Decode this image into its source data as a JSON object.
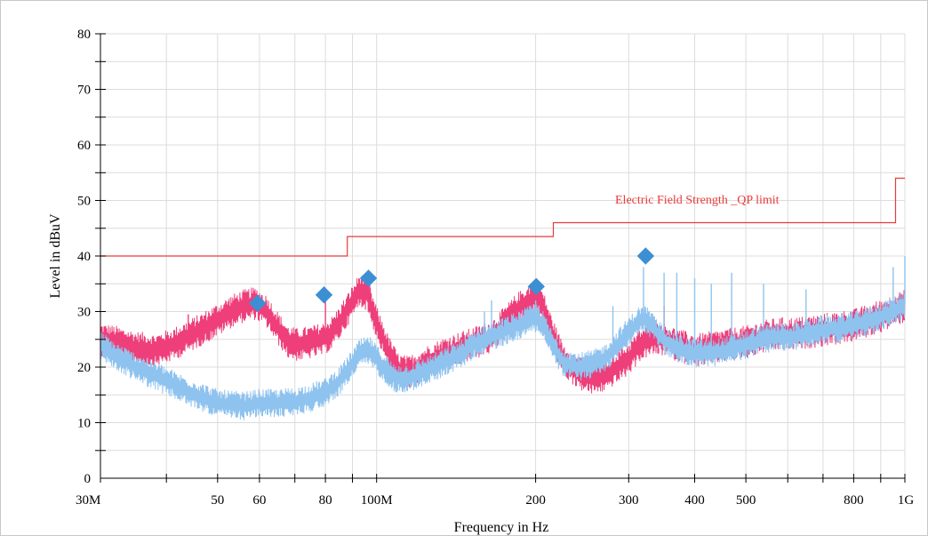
{
  "colors": {
    "peak": "#ee3f7a",
    "qp": "#8fc3ef",
    "limit": "#ea3a3a",
    "marker": "#3d8fd4",
    "grid": "#dcdcdc",
    "axis": "#000000"
  },
  "chart_data": {
    "type": "line",
    "xlabel": "Frequency in Hz",
    "ylabel": "Level in dBuV",
    "x_scale": "log",
    "xlim": [
      "30M",
      "1G"
    ],
    "ylim": [
      0,
      80
    ],
    "grid": true,
    "x_tick_labels": [
      {
        "freq_mhz": 30,
        "label": "30M"
      },
      {
        "freq_mhz": 50,
        "label": "50"
      },
      {
        "freq_mhz": 60,
        "label": "60"
      },
      {
        "freq_mhz": 80,
        "label": "80"
      },
      {
        "freq_mhz": 100,
        "label": "100M"
      },
      {
        "freq_mhz": 200,
        "label": "200"
      },
      {
        "freq_mhz": 300,
        "label": "300"
      },
      {
        "freq_mhz": 400,
        "label": "400"
      },
      {
        "freq_mhz": 500,
        "label": "500"
      },
      {
        "freq_mhz": 800,
        "label": "800"
      },
      {
        "freq_mhz": 1000,
        "label": "1G"
      }
    ],
    "x_grid_mhz": [
      30,
      40,
      50,
      60,
      70,
      80,
      90,
      100,
      200,
      300,
      400,
      500,
      600,
      700,
      800,
      900,
      1000
    ],
    "y_ticks": [
      0,
      10,
      20,
      30,
      40,
      50,
      60,
      70,
      80
    ],
    "y_grid": [
      5,
      10,
      15,
      20,
      25,
      30,
      35,
      40,
      45,
      50,
      55,
      60,
      65,
      70,
      75,
      80
    ],
    "limit": {
      "label": "Electric Field Strength _QP limit",
      "steps_mhz_db": [
        [
          30,
          40
        ],
        [
          88,
          40
        ],
        [
          88,
          43.5
        ],
        [
          216,
          43.5
        ],
        [
          216,
          46
        ],
        [
          960,
          46
        ],
        [
          960,
          54
        ],
        [
          1000,
          54
        ]
      ]
    },
    "series": [
      {
        "key": "peak_red",
        "points": [
          [
            30,
            25
          ],
          [
            32,
            24.5
          ],
          [
            35,
            23.5
          ],
          [
            38,
            23
          ],
          [
            41,
            24
          ],
          [
            44,
            25.5
          ],
          [
            47,
            27
          ],
          [
            50,
            28.5
          ],
          [
            53,
            30
          ],
          [
            56,
            31
          ],
          [
            59,
            31.5
          ],
          [
            62,
            30
          ],
          [
            65,
            27
          ],
          [
            68,
            24.5
          ],
          [
            71,
            24
          ],
          [
            75,
            24.5
          ],
          [
            79,
            25
          ],
          [
            82,
            26
          ],
          [
            85,
            28
          ],
          [
            89,
            31
          ],
          [
            93,
            34
          ],
          [
            96,
            33
          ],
          [
            100,
            28
          ],
          [
            105,
            23
          ],
          [
            110,
            19.5
          ],
          [
            115,
            19
          ],
          [
            125,
            21
          ],
          [
            135,
            22.5
          ],
          [
            145,
            23.5
          ],
          [
            155,
            24.5
          ],
          [
            165,
            25.5
          ],
          [
            175,
            28
          ],
          [
            185,
            30.5
          ],
          [
            195,
            32
          ],
          [
            202,
            33
          ],
          [
            208,
            30
          ],
          [
            215,
            26
          ],
          [
            225,
            21.5
          ],
          [
            240,
            19
          ],
          [
            255,
            18
          ],
          [
            270,
            18.5
          ],
          [
            285,
            20
          ],
          [
            300,
            21.5
          ],
          [
            315,
            24
          ],
          [
            330,
            25
          ],
          [
            350,
            25
          ],
          [
            370,
            24
          ],
          [
            400,
            23
          ],
          [
            430,
            23.5
          ],
          [
            460,
            24
          ],
          [
            500,
            24.5
          ],
          [
            540,
            25.5
          ],
          [
            580,
            26
          ],
          [
            620,
            26
          ],
          [
            680,
            26.5
          ],
          [
            740,
            27
          ],
          [
            800,
            27.5
          ],
          [
            860,
            28.5
          ],
          [
            920,
            29.5
          ],
          [
            970,
            30.5
          ],
          [
            1000,
            31
          ]
        ],
        "jitter": 3.0,
        "spikes": [
          [
            44,
            29.5
          ],
          [
            80,
            33
          ],
          [
            97,
            36
          ],
          [
            200,
            34
          ],
          [
            350,
            31
          ]
        ]
      },
      {
        "key": "qp_blue",
        "points": [
          [
            30,
            24
          ],
          [
            32,
            22
          ],
          [
            35,
            20
          ],
          [
            38,
            18.5
          ],
          [
            41,
            17
          ],
          [
            44,
            15.5
          ],
          [
            47,
            14.5
          ],
          [
            50,
            13.5
          ],
          [
            53,
            13.2
          ],
          [
            56,
            13
          ],
          [
            60,
            13.5
          ],
          [
            65,
            13.5
          ],
          [
            70,
            13.8
          ],
          [
            75,
            14.5
          ],
          [
            80,
            15.5
          ],
          [
            85,
            17.5
          ],
          [
            89,
            20
          ],
          [
            93,
            22.5
          ],
          [
            97,
            23
          ],
          [
            102,
            20.5
          ],
          [
            108,
            18
          ],
          [
            115,
            18
          ],
          [
            125,
            19.5
          ],
          [
            135,
            21
          ],
          [
            145,
            22.5
          ],
          [
            155,
            24.5
          ],
          [
            165,
            25.5
          ],
          [
            175,
            26.5
          ],
          [
            185,
            27.5
          ],
          [
            195,
            28.5
          ],
          [
            202,
            29
          ],
          [
            208,
            27
          ],
          [
            215,
            24
          ],
          [
            225,
            21
          ],
          [
            240,
            20
          ],
          [
            255,
            20.5
          ],
          [
            270,
            21.5
          ],
          [
            285,
            24
          ],
          [
            300,
            26.5
          ],
          [
            315,
            28.5
          ],
          [
            325,
            28.5
          ],
          [
            340,
            26
          ],
          [
            360,
            24
          ],
          [
            380,
            23
          ],
          [
            400,
            22.5
          ],
          [
            430,
            22.5
          ],
          [
            460,
            23
          ],
          [
            500,
            24
          ],
          [
            540,
            25
          ],
          [
            580,
            25.5
          ],
          [
            620,
            25.5
          ],
          [
            680,
            26.5
          ],
          [
            740,
            27
          ],
          [
            800,
            27.5
          ],
          [
            860,
            28.5
          ],
          [
            920,
            29.5
          ],
          [
            970,
            30.5
          ],
          [
            1000,
            31.5
          ]
        ],
        "jitter": 2.6,
        "spikes": [
          [
            160,
            30
          ],
          [
            165,
            32
          ],
          [
            200,
            32
          ],
          [
            280,
            31
          ],
          [
            320,
            38
          ],
          [
            350,
            37
          ],
          [
            370,
            37
          ],
          [
            400,
            36
          ],
          [
            430,
            35
          ],
          [
            470,
            37
          ],
          [
            540,
            35
          ],
          [
            650,
            34
          ],
          [
            950,
            38
          ],
          [
            1000,
            40
          ]
        ]
      }
    ],
    "markers": [
      {
        "freq_mhz": 59.5,
        "level_db": 31.5
      },
      {
        "freq_mhz": 79.5,
        "level_db": 33
      },
      {
        "freq_mhz": 96.5,
        "level_db": 36
      },
      {
        "freq_mhz": 200.5,
        "level_db": 34.5
      },
      {
        "freq_mhz": 323,
        "level_db": 40
      }
    ]
  }
}
